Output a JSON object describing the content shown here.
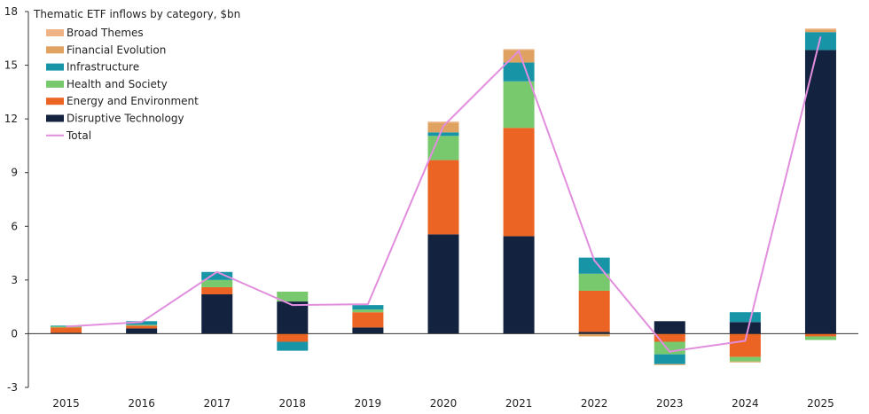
{
  "chart_data": {
    "type": "bar",
    "title": "Thematic ETF inflows by category, $bn",
    "categories": [
      "2015",
      "2016",
      "2017",
      "2018",
      "2019",
      "2020",
      "2021",
      "2022",
      "2023",
      "2024",
      "2025"
    ],
    "ylim": [
      -3,
      18
    ],
    "yticks": [
      -3,
      0,
      3,
      6,
      9,
      12,
      15,
      18
    ],
    "grid": false,
    "legend_position": "top-left",
    "stacked": true,
    "series": [
      {
        "name": "Disruptive Technology",
        "color": "#13233f",
        "values": [
          0.05,
          0.3,
          2.2,
          1.8,
          0.35,
          5.55,
          5.45,
          0.1,
          0.7,
          0.65,
          15.85
        ]
      },
      {
        "name": "Energy and Environment",
        "color": "#eb6424",
        "values": [
          0.3,
          0.15,
          0.4,
          -0.45,
          0.85,
          4.15,
          6.05,
          2.3,
          -0.45,
          -1.3,
          -0.15
        ]
      },
      {
        "name": "Health and Society",
        "color": "#78c86e",
        "values": [
          0.05,
          0.05,
          0.4,
          0.55,
          0.15,
          1.35,
          2.6,
          0.95,
          -0.7,
          -0.25,
          -0.2
        ]
      },
      {
        "name": "Infrastructure",
        "color": "#1795a7",
        "values": [
          0.05,
          0.2,
          0.45,
          -0.5,
          0.25,
          0.2,
          1.05,
          0.9,
          -0.55,
          0.55,
          1.0
        ]
      },
      {
        "name": "Financial Evolution",
        "color": "#e0a261",
        "values": [
          0.0,
          0.0,
          0.0,
          0.0,
          0.0,
          0.55,
          0.7,
          -0.15,
          -0.05,
          -0.05,
          0.15
        ]
      },
      {
        "name": "Broad Themes",
        "color": "#f0b385",
        "values": [
          0.0,
          0.0,
          0.0,
          0.0,
          0.0,
          0.05,
          0.05,
          0.0,
          0.0,
          0.0,
          0.05
        ]
      }
    ],
    "line_series": {
      "name": "Total",
      "color": "#e28ede",
      "values": [
        0.4,
        0.65,
        3.45,
        1.6,
        1.65,
        11.6,
        15.8,
        4.1,
        -1.0,
        -0.4,
        16.6
      ]
    },
    "legend_order": [
      "Broad Themes",
      "Financial Evolution",
      "Infrastructure",
      "Health and Society",
      "Energy and Environment",
      "Disruptive Technology",
      "Total"
    ]
  }
}
